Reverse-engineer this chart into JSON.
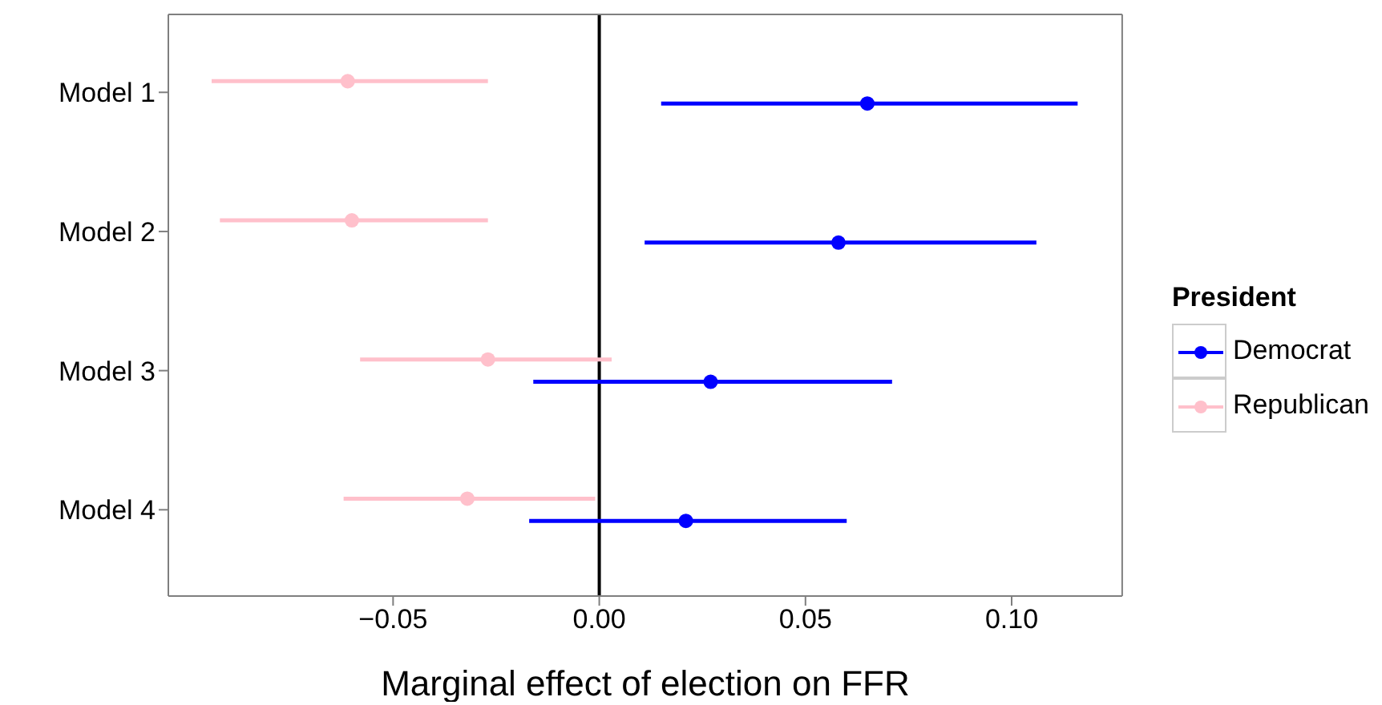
{
  "chart_data": {
    "type": "scatter",
    "orientation": "horizontal",
    "categories": [
      "Model 1",
      "Model 2",
      "Model 3",
      "Model 4"
    ],
    "xlabel": "Marginal effect of election on FFR",
    "legend_title": "President",
    "legend": "right",
    "marker": "circle",
    "xlim": [
      -0.1045,
      0.1268
    ],
    "xticks": [
      {
        "value": -0.05,
        "label": "−0.05"
      },
      {
        "value": 0,
        "label": "0.00"
      },
      {
        "value": 0.05,
        "label": "0.05"
      },
      {
        "value": 0.1,
        "label": "0.10"
      }
    ],
    "ref_lines": [
      {
        "axis": "x",
        "value": 0,
        "color": "#000000"
      }
    ],
    "series": [
      {
        "name": "Democrat",
        "color": "#0000ff",
        "values": [
          0.065,
          0.058,
          0.027,
          0.021
        ],
        "errors": [
          [
            0.015,
            0.116
          ],
          [
            0.011,
            0.106
          ],
          [
            -0.016,
            0.071
          ],
          [
            -0.017,
            0.06
          ]
        ]
      },
      {
        "name": "Republican",
        "color": "#ffc0cb",
        "values": [
          -0.061,
          -0.06,
          -0.027,
          -0.032
        ],
        "errors": [
          [
            -0.094,
            -0.027
          ],
          [
            -0.092,
            -0.027
          ],
          [
            -0.058,
            0.003
          ],
          [
            -0.062,
            -0.001
          ]
        ]
      }
    ]
  }
}
